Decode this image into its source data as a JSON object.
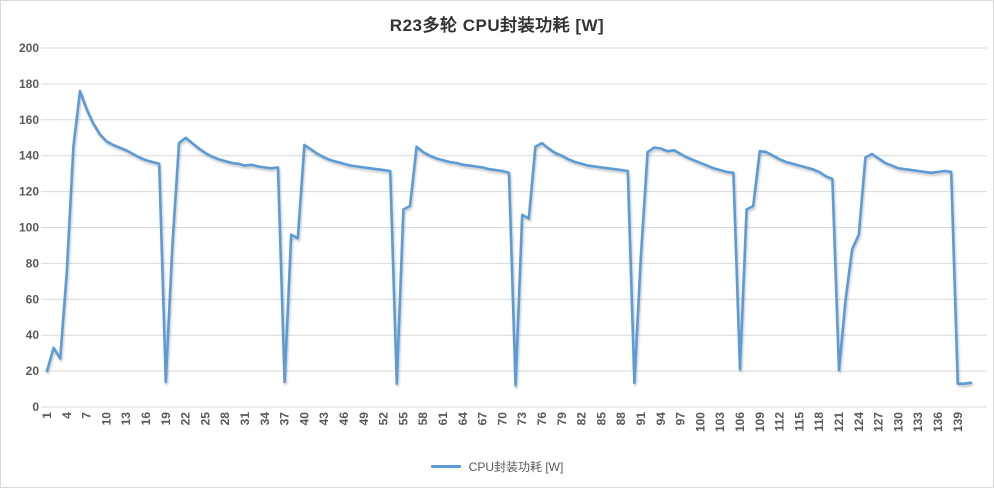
{
  "title": "R23多轮 CPU封装功耗 [W]",
  "legend": {
    "label": "CPU封装功耗 [W]"
  },
  "chart_data": {
    "type": "line",
    "title": "R23多轮 CPU封装功耗 [W]",
    "series_name": "CPU封装功耗 [W]",
    "xlabel": "",
    "ylabel": "",
    "ylim": [
      0,
      200
    ],
    "ytick_step": 20,
    "grid": true,
    "legend_position": "bottom",
    "line_color": "#5B9BD5",
    "gridline_color": "#D9D9D9",
    "axis_label_color": "#595959",
    "x_label_interval": 3,
    "x_tick_labels": [
      "1",
      "4",
      "7",
      "10",
      "13",
      "16",
      "19",
      "22",
      "25",
      "28",
      "31",
      "34",
      "37",
      "40",
      "43",
      "46",
      "49",
      "52",
      "55",
      "58",
      "61",
      "64",
      "67",
      "70",
      "73",
      "76",
      "79",
      "82",
      "85",
      "88",
      "91",
      "94",
      "97",
      "100",
      "103",
      "106",
      "109",
      "112",
      "115",
      "118",
      "121",
      "124",
      "127",
      "130",
      "133",
      "136",
      "139"
    ],
    "values": [
      20,
      33,
      27,
      75,
      145,
      176,
      166,
      158,
      152,
      148,
      146,
      144.5,
      143,
      141,
      139,
      137.5,
      136.5,
      135.5,
      14,
      90,
      147,
      150,
      147,
      144,
      141.5,
      139.5,
      138,
      137,
      136,
      135.5,
      134.5,
      135,
      134,
      133.5,
      133,
      133.5,
      14,
      96,
      94,
      146,
      143.5,
      141,
      139,
      137.5,
      136.5,
      135.5,
      134.5,
      134,
      133.5,
      133,
      132.5,
      132,
      131.5,
      13,
      110,
      112,
      145,
      142,
      140,
      138.5,
      137.5,
      136.5,
      136,
      135,
      134.5,
      134,
      133.5,
      132.5,
      132,
      131.5,
      130.5,
      12,
      107,
      105,
      145,
      147,
      144,
      141.5,
      140,
      138,
      136.5,
      135.5,
      134.5,
      134,
      133.5,
      133,
      132.5,
      132,
      131.5,
      13.5,
      85,
      142,
      144.5,
      144,
      142.5,
      143,
      141,
      139,
      137.5,
      136,
      134.5,
      133,
      132,
      131,
      130.5,
      21,
      110,
      112,
      142.5,
      142,
      140,
      138,
      136.5,
      135.5,
      134.5,
      133.5,
      132.5,
      131,
      128.5,
      127,
      20.5,
      60,
      88,
      96,
      139,
      141,
      138.5,
      136,
      134.5,
      133,
      132.5,
      132,
      131.5,
      131,
      130.5,
      131,
      131.5,
      131,
      13,
      13,
      13.5
    ]
  }
}
